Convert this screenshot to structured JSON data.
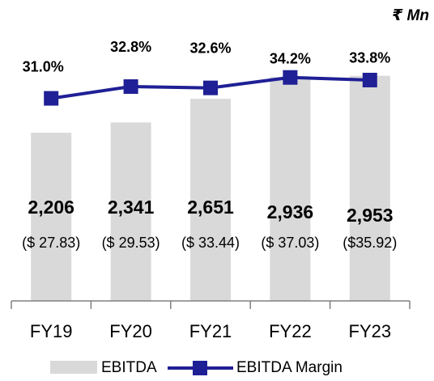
{
  "chart_data": {
    "type": "bar",
    "unit_label": "₹ Mn",
    "categories": [
      "FY19",
      "FY20",
      "FY21",
      "FY22",
      "FY23"
    ],
    "series": [
      {
        "name": "EBITDA",
        "type": "bar",
        "color": "#d9d9d9",
        "values": [
          2206,
          2341,
          2651,
          2936,
          2953
        ],
        "value_labels": [
          "2,206",
          "2,341",
          "2,651",
          "2,936",
          "2,953"
        ],
        "value_sublabels": [
          "($ 27.83)",
          "($ 29.53)",
          "($ 33.44)",
          "($ 37.03)",
          "($35.92)"
        ]
      },
      {
        "name": "EBITDA Margin",
        "type": "line",
        "axis": "y2",
        "color": "#1f1f96",
        "values": [
          31.0,
          32.8,
          32.6,
          34.2,
          33.8
        ],
        "value_labels": [
          "31.0%",
          "32.8%",
          "32.6%",
          "34.2%",
          "33.8%"
        ]
      }
    ],
    "ylim": [
      0,
      3300
    ],
    "y2lim": [
      0,
      38.5
    ]
  }
}
